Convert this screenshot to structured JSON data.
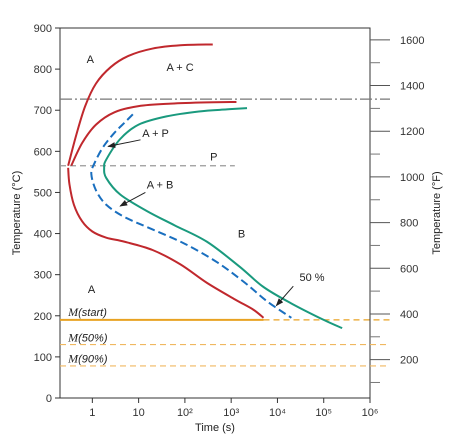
{
  "chart_data": {
    "type": "line",
    "xlabel": "Time (s)",
    "ylabel": "Temperature (°C)",
    "ylabel_right": "Temperature (°F)",
    "x_scale": "log",
    "xlim": [
      0.2,
      1000000
    ],
    "ylim": [
      0,
      900
    ],
    "ylim_right_F": [
      32,
      1652
    ],
    "x_ticks": [
      {
        "value": 1,
        "label": "1"
      },
      {
        "value": 10,
        "label": "10"
      },
      {
        "value": 100,
        "label": "10²"
      },
      {
        "value": 1000,
        "label": "10³"
      },
      {
        "value": 10000,
        "label": "10⁴"
      },
      {
        "value": 100000,
        "label": "10⁵"
      },
      {
        "value": 1000000,
        "label": "10⁶"
      }
    ],
    "y_ticks": [
      0,
      100,
      200,
      300,
      400,
      500,
      600,
      700,
      800,
      900
    ],
    "y_ticks_right_F": [
      200,
      400,
      600,
      800,
      1000,
      1200,
      1400,
      1600
    ],
    "series": [
      {
        "id": "upper-start",
        "color": "#c0282d",
        "dashed": false,
        "points": [
          [
            0.3,
            565
          ],
          [
            0.45,
            640
          ],
          [
            0.7,
            710
          ],
          [
            1.2,
            765
          ],
          [
            2.5,
            805
          ],
          [
            6,
            832
          ],
          [
            20,
            850
          ],
          [
            80,
            858
          ],
          [
            400,
            860
          ]
        ]
      },
      {
        "id": "upper-finish",
        "color": "#c0282d",
        "dashed": false,
        "points": [
          [
            0.35,
            565
          ],
          [
            0.6,
            620
          ],
          [
            1.2,
            665
          ],
          [
            3,
            695
          ],
          [
            10,
            710
          ],
          [
            50,
            716
          ],
          [
            300,
            719
          ],
          [
            1300,
            720
          ]
        ]
      },
      {
        "id": "lower-start",
        "color": "#c0282d",
        "dashed": false,
        "points": [
          [
            0.3,
            560
          ],
          [
            0.32,
            520
          ],
          [
            0.4,
            470
          ],
          [
            0.6,
            430
          ],
          [
            1,
            405
          ],
          [
            2,
            390
          ],
          [
            5,
            380
          ],
          [
            20,
            360
          ],
          [
            80,
            325
          ],
          [
            300,
            280
          ],
          [
            1200,
            240
          ],
          [
            3000,
            215
          ],
          [
            5000,
            195
          ]
        ]
      },
      {
        "id": "mid-50",
        "color": "#1a6fbf",
        "dashed": true,
        "points": [
          [
            7.5,
            690
          ],
          [
            5,
            670
          ],
          [
            3,
            645
          ],
          [
            1.7,
            610
          ],
          [
            1.1,
            570
          ],
          [
            0.95,
            545
          ],
          [
            1.2,
            505
          ],
          [
            2,
            470
          ],
          [
            5,
            440
          ],
          [
            20,
            410
          ],
          [
            100,
            375
          ],
          [
            500,
            330
          ],
          [
            2000,
            280
          ],
          [
            6000,
            235
          ],
          [
            20000,
            195
          ]
        ]
      },
      {
        "id": "finish-curve",
        "color": "#1a9a7e",
        "dashed": false,
        "points": [
          [
            2200,
            705
          ],
          [
            800,
            702
          ],
          [
            200,
            697
          ],
          [
            40,
            685
          ],
          [
            10,
            665
          ],
          [
            4,
            630
          ],
          [
            2,
            580
          ],
          [
            1.8,
            560
          ],
          [
            2,
            535
          ],
          [
            4,
            495
          ],
          [
            15,
            455
          ],
          [
            60,
            420
          ],
          [
            300,
            380
          ],
          [
            1500,
            320
          ],
          [
            5000,
            270
          ],
          [
            20000,
            230
          ],
          [
            100000,
            190
          ],
          [
            250000,
            170
          ]
        ]
      },
      {
        "id": "M-start",
        "color": "#e8a222",
        "dashed": false,
        "points": [
          [
            0.2,
            190
          ],
          [
            1000000,
            190
          ]
        ]
      }
    ],
    "reference_lines": [
      {
        "id": "eutectoid-line",
        "y": 727,
        "color": "#777777",
        "style": "dashdot",
        "from": 0.2,
        "to": 1000000
      },
      {
        "id": "p-line",
        "y": 565,
        "color": "#999999",
        "style": "dashed",
        "from": 0.2,
        "to": 1200
      },
      {
        "id": "m-start-dashed",
        "y": 190,
        "color": "#e8a222",
        "style": "dashed",
        "from": 5000,
        "to": 1000000
      },
      {
        "id": "m50-line",
        "y": 130,
        "color": "#f0b860",
        "style": "dashed",
        "from": 0.2,
        "to": 1000000
      },
      {
        "id": "m90-line",
        "y": 78,
        "color": "#f0b860",
        "style": "dashed",
        "from": 0.2,
        "to": 1000000
      }
    ],
    "annotations": [
      {
        "id": "label-a-top",
        "text": "A",
        "x": 0.75,
        "y": 815,
        "style": "plain"
      },
      {
        "id": "label-a-plus-c",
        "text": "A + C",
        "x": 40,
        "y": 795,
        "style": "plain"
      },
      {
        "id": "label-a-plus-p",
        "text": "A + P",
        "x": 12,
        "y": 635,
        "style": "plain"
      },
      {
        "id": "label-p",
        "text": "P",
        "x": 350,
        "y": 578,
        "style": "plain"
      },
      {
        "id": "label-a-plus-b",
        "text": "A + B",
        "x": 15,
        "y": 510,
        "style": "plain"
      },
      {
        "id": "label-b",
        "text": "B",
        "x": 1400,
        "y": 390,
        "style": "plain"
      },
      {
        "id": "label-a-bottom",
        "text": "A",
        "x": 0.8,
        "y": 255,
        "style": "plain"
      },
      {
        "id": "label-50pct",
        "text": "50 %",
        "x": 30000,
        "y": 285,
        "style": "plain"
      },
      {
        "id": "label-m-start",
        "text": "M",
        "x": 0.3,
        "y": 200,
        "style": "italic",
        "suffix": "(start)"
      },
      {
        "id": "label-m-50",
        "text": "M",
        "x": 0.3,
        "y": 138,
        "style": "italic",
        "suffix": "(50%)"
      },
      {
        "id": "label-m-90",
        "text": "M",
        "x": 0.3,
        "y": 86,
        "style": "italic",
        "suffix": "(90%)"
      }
    ],
    "arrows": [
      {
        "id": "arrow-a-plus-p",
        "from": [
          11,
          628
        ],
        "to": [
          2.2,
          612
        ]
      },
      {
        "id": "arrow-a-plus-b",
        "from": [
          14,
          500
        ],
        "to": [
          4,
          467
        ]
      },
      {
        "id": "arrow-50pct",
        "from": [
          22000,
          272
        ],
        "to": [
          9500,
          225
        ]
      }
    ]
  }
}
